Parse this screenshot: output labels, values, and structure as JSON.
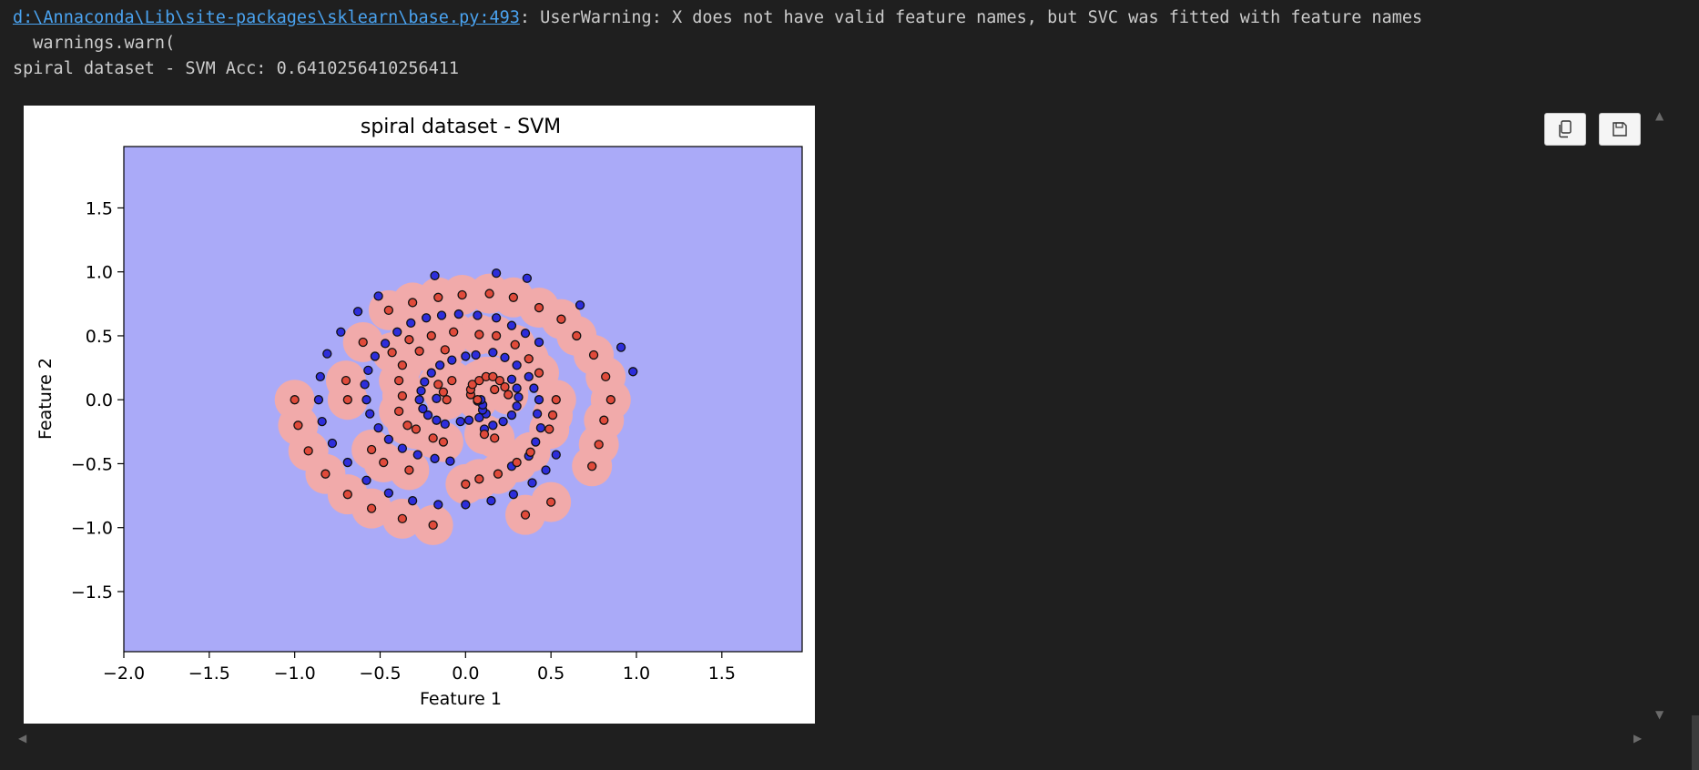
{
  "output": {
    "warning_link": "d:\\Annaconda\\Lib\\site-packages\\sklearn\\base.py:493",
    "warning_text": ": UserWarning: X does not have valid feature names, but SVC was fitted with feature names",
    "warn_call": "  warnings.warn(",
    "accuracy_line": "spiral dataset - SVM Acc: 0.6410256410256411"
  },
  "toolbar": {
    "copy_icon": "copy-icon",
    "save_icon": "save-icon"
  },
  "colors": {
    "page_bg": "#1f1f1f",
    "background_region": "#aaaaf8",
    "class1_region": "#f1aaaa",
    "class0_point": "#2d2ddb",
    "class1_point": "#e04a3a",
    "link": "#4aa3f0"
  },
  "chart_data": {
    "type": "scatter",
    "title": "spiral dataset - SVM",
    "xlabel": "Feature 1",
    "ylabel": "Feature 2",
    "xlim": [
      -2.0,
      1.97
    ],
    "ylim": [
      -1.97,
      1.98
    ],
    "xticks": [
      "−2.0",
      "−1.5",
      "−1.0",
      "−0.5",
      "0.0",
      "0.5",
      "1.0",
      "1.5"
    ],
    "yticks": [
      "1.5",
      "1.0",
      "0.5",
      "0.0",
      "−0.5",
      "−1.0",
      "−1.5"
    ],
    "xtick_values": [
      -2.0,
      -1.5,
      -1.0,
      -0.5,
      0.0,
      0.5,
      1.0,
      1.5
    ],
    "ytick_values": [
      1.5,
      1.0,
      0.5,
      0.0,
      -0.5,
      -1.0,
      -1.5
    ],
    "grid": false,
    "series": [
      {
        "points": [
          [
            -0.18,
            0.97
          ],
          [
            0.18,
            0.99
          ],
          [
            0.36,
            0.95
          ],
          [
            -0.51,
            0.81
          ],
          [
            0.67,
            0.74
          ],
          [
            -0.63,
            0.69
          ],
          [
            -0.73,
            0.53
          ],
          [
            -0.81,
            0.36
          ],
          [
            -0.85,
            0.18
          ],
          [
            0.91,
            0.41
          ],
          [
            0.98,
            0.22
          ],
          [
            -0.86,
            0.0
          ],
          [
            -0.84,
            -0.17
          ],
          [
            -0.78,
            -0.34
          ],
          [
            -0.69,
            -0.49
          ],
          [
            -0.58,
            -0.63
          ],
          [
            -0.45,
            -0.73
          ],
          [
            -0.31,
            -0.79
          ],
          [
            -0.16,
            -0.82
          ],
          [
            0.0,
            -0.82
          ],
          [
            0.15,
            -0.79
          ],
          [
            0.28,
            -0.74
          ],
          [
            0.39,
            -0.65
          ],
          [
            0.47,
            -0.55
          ],
          [
            0.53,
            -0.43
          ],
          [
            -0.47,
            0.44
          ],
          [
            -0.4,
            0.53
          ],
          [
            -0.32,
            0.6
          ],
          [
            -0.23,
            0.64
          ],
          [
            -0.14,
            0.66
          ],
          [
            -0.04,
            0.67
          ],
          [
            0.07,
            0.66
          ],
          [
            0.18,
            0.64
          ],
          [
            0.27,
            0.58
          ],
          [
            0.35,
            0.52
          ],
          [
            0.43,
            0.45
          ],
          [
            -0.53,
            0.34
          ],
          [
            -0.57,
            0.23
          ],
          [
            -0.59,
            0.12
          ],
          [
            -0.58,
            0.0
          ],
          [
            -0.56,
            -0.11
          ],
          [
            -0.51,
            -0.22
          ],
          [
            -0.45,
            -0.31
          ],
          [
            -0.37,
            -0.38
          ],
          [
            -0.28,
            -0.43
          ],
          [
            -0.18,
            -0.46
          ],
          [
            -0.09,
            -0.48
          ],
          [
            0.27,
            -0.52
          ],
          [
            0.37,
            -0.44
          ],
          [
            0.41,
            -0.33
          ],
          [
            0.44,
            -0.22
          ],
          [
            0.42,
            -0.11
          ],
          [
            0.43,
            0.0
          ],
          [
            0.4,
            0.09
          ],
          [
            0.37,
            0.18
          ],
          [
            0.3,
            0.27
          ],
          [
            0.23,
            0.33
          ],
          [
            0.16,
            0.37
          ],
          [
            0.06,
            0.35
          ],
          [
            0.0,
            0.34
          ],
          [
            -0.08,
            0.31
          ],
          [
            -0.15,
            0.27
          ],
          [
            -0.2,
            0.21
          ],
          [
            -0.24,
            0.14
          ],
          [
            -0.26,
            0.07
          ],
          [
            -0.27,
            0.0
          ],
          [
            -0.25,
            -0.07
          ],
          [
            -0.22,
            -0.12
          ],
          [
            -0.17,
            -0.16
          ],
          [
            -0.12,
            -0.19
          ],
          [
            0.27,
            0.16
          ],
          [
            0.3,
            0.09
          ],
          [
            0.31,
            0.02
          ],
          [
            0.3,
            -0.05
          ],
          [
            0.27,
            -0.12
          ],
          [
            0.22,
            -0.17
          ],
          [
            0.16,
            -0.2
          ],
          [
            0.11,
            -0.23
          ],
          [
            -0.17,
            0.01
          ],
          [
            0.02,
            -0.16
          ],
          [
            -0.03,
            -0.17
          ],
          [
            0.08,
            -0.14
          ],
          [
            0.12,
            -0.11
          ],
          [
            0.1,
            -0.08
          ],
          [
            0.1,
            -0.04
          ],
          [
            0.09,
            0.0
          ],
          [
            0.07,
            -0.01
          ]
        ],
        "color": "#2d2ddb"
      },
      {
        "points": [
          [
            -0.02,
            0.82
          ],
          [
            0.14,
            0.83
          ],
          [
            0.28,
            0.8
          ],
          [
            -0.16,
            0.8
          ],
          [
            -0.31,
            0.76
          ],
          [
            0.43,
            0.72
          ],
          [
            0.56,
            0.63
          ],
          [
            -0.45,
            0.7
          ],
          [
            0.65,
            0.5
          ],
          [
            0.75,
            0.35
          ],
          [
            0.82,
            0.18
          ],
          [
            -0.6,
            0.45
          ],
          [
            0.85,
            0.0
          ],
          [
            0.81,
            -0.16
          ],
          [
            -0.7,
            0.15
          ],
          [
            -0.69,
            0.0
          ],
          [
            -1.0,
            0.0
          ],
          [
            -0.98,
            -0.2
          ],
          [
            -0.92,
            -0.4
          ],
          [
            -0.82,
            -0.58
          ],
          [
            -0.69,
            -0.74
          ],
          [
            -0.55,
            -0.85
          ],
          [
            -0.37,
            -0.93
          ],
          [
            -0.19,
            -0.98
          ],
          [
            0.74,
            -0.52
          ],
          [
            0.78,
            -0.35
          ],
          [
            0.35,
            -0.9
          ],
          [
            0.5,
            -0.8
          ],
          [
            -0.55,
            -0.39
          ],
          [
            -0.48,
            -0.49
          ],
          [
            -0.33,
            -0.55
          ],
          [
            -0.2,
            0.5
          ],
          [
            -0.33,
            0.47
          ],
          [
            -0.43,
            0.37
          ],
          [
            -0.07,
            0.53
          ],
          [
            0.08,
            0.51
          ],
          [
            0.18,
            0.5
          ],
          [
            0.29,
            0.43
          ],
          [
            0.37,
            0.32
          ],
          [
            0.43,
            0.21
          ],
          [
            0.53,
            0.0
          ],
          [
            0.51,
            -0.12
          ],
          [
            0.49,
            -0.23
          ],
          [
            0.38,
            -0.41
          ],
          [
            0.3,
            -0.49
          ],
          [
            0.19,
            -0.58
          ],
          [
            0.08,
            -0.62
          ],
          [
            0.0,
            -0.66
          ],
          [
            -0.12,
            0.39
          ],
          [
            -0.27,
            0.38
          ],
          [
            -0.37,
            0.27
          ],
          [
            -0.39,
            0.15
          ],
          [
            -0.37,
            0.03
          ],
          [
            -0.39,
            -0.09
          ],
          [
            -0.34,
            -0.2
          ],
          [
            -0.29,
            -0.23
          ],
          [
            -0.19,
            -0.3
          ],
          [
            -0.13,
            -0.33
          ],
          [
            0.07,
            0.0
          ],
          [
            -0.08,
            0.15
          ],
          [
            -0.16,
            0.12
          ],
          [
            -0.13,
            0.06
          ],
          [
            -0.11,
            -0.0
          ],
          [
            0.03,
            0.04
          ],
          [
            0.03,
            0.08
          ],
          [
            0.04,
            0.12
          ],
          [
            0.08,
            0.15
          ],
          [
            0.12,
            0.18
          ],
          [
            0.16,
            0.18
          ],
          [
            0.2,
            0.15
          ],
          [
            0.23,
            0.1
          ],
          [
            0.25,
            0.04
          ],
          [
            0.17,
            0.08
          ],
          [
            0.11,
            -0.27
          ],
          [
            0.17,
            -0.3
          ]
        ],
        "color": "#e04a3a"
      }
    ]
  }
}
